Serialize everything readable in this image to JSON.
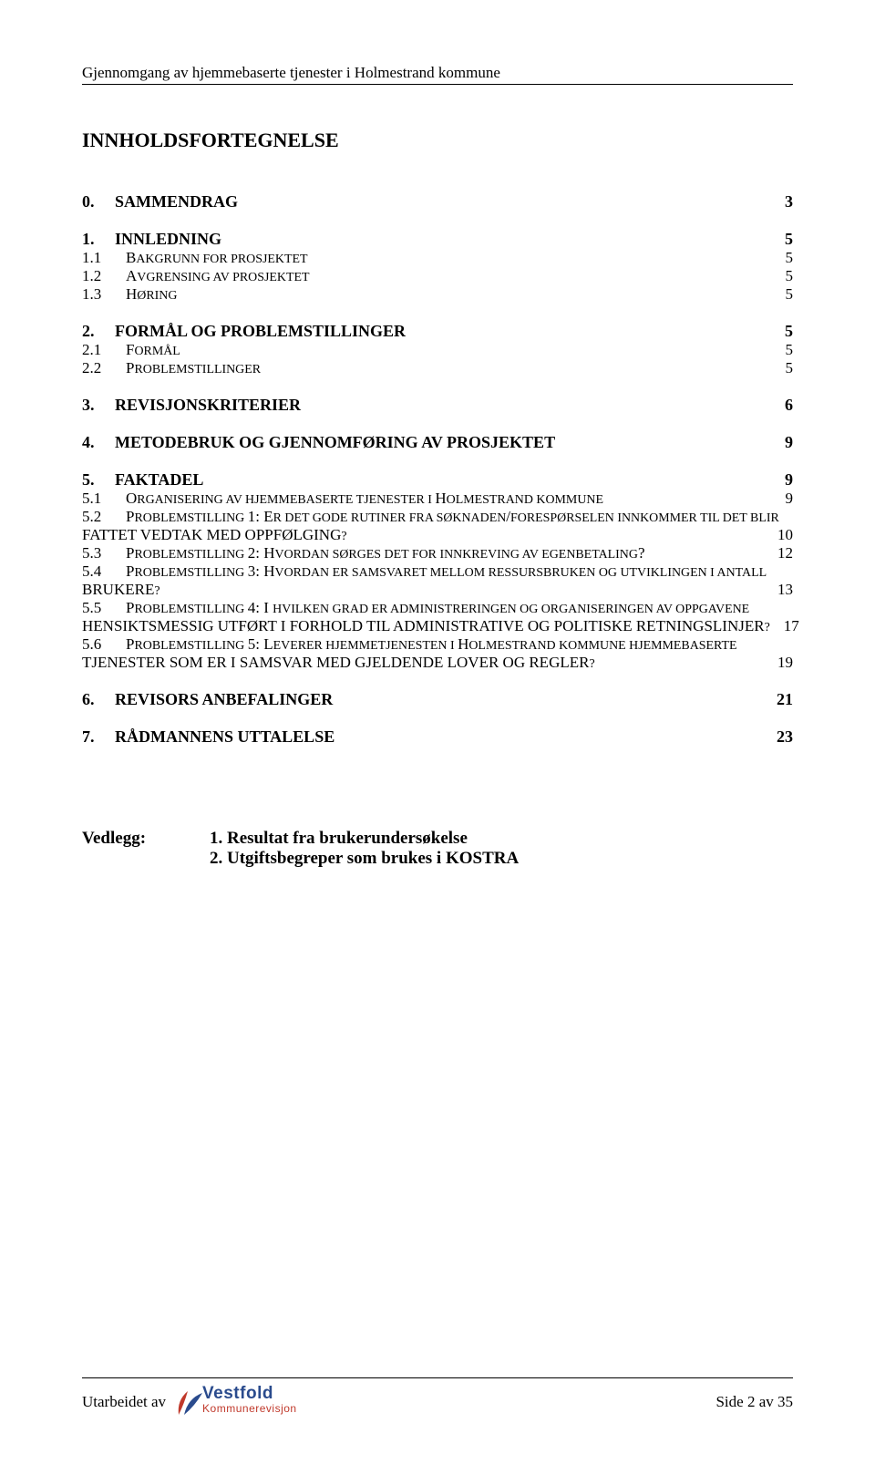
{
  "header": {
    "text": "Gjennomgang av hjemmebaserte tjenester i Holmestrand kommune"
  },
  "toc": {
    "title": "INNHOLDSFORTEGNELSE",
    "entries": [
      {
        "level": 1,
        "num": "0.",
        "label": "SAMMENDRAG",
        "page": "3",
        "first": true
      },
      {
        "level": 1,
        "num": "1.",
        "label": "INNLEDNING",
        "page": "5"
      },
      {
        "level": 2,
        "num": "1.1",
        "label_parts": [
          "B",
          "AKGRUNN FOR PROSJEKTET"
        ],
        "page": "5"
      },
      {
        "level": 2,
        "num": "1.2",
        "label_parts": [
          "A",
          "VGRENSING AV PROSJEKTET"
        ],
        "page": "5"
      },
      {
        "level": 2,
        "num": "1.3",
        "label_parts": [
          "H",
          "ØRING"
        ],
        "page": "5"
      },
      {
        "level": 1,
        "num": "2.",
        "label": "FORMÅL OG PROBLEMSTILLINGER",
        "page": "5"
      },
      {
        "level": 2,
        "num": "2.1",
        "label_parts": [
          "F",
          "ORMÅL"
        ],
        "page": "5"
      },
      {
        "level": 2,
        "num": "2.2",
        "label_parts": [
          "P",
          "ROBLEMSTILLINGER"
        ],
        "page": "5"
      },
      {
        "level": 1,
        "num": "3.",
        "label": "REVISJONSKRITERIER",
        "page": "6"
      },
      {
        "level": 1,
        "num": "4.",
        "label": "METODEBRUK OG GJENNOMFØRING AV PROSJEKTET",
        "page": "9"
      },
      {
        "level": 1,
        "num": "5.",
        "label": "FAKTADEL",
        "page": "9"
      },
      {
        "level": 2,
        "num": "5.1",
        "label_parts": [
          "O",
          "RGANISERING AV HJEMMEBASERTE TJENESTER I ",
          "H",
          "OLMESTRAND KOMMUNE"
        ],
        "page": "9"
      },
      {
        "level": 2,
        "num": "5.2",
        "multi": true,
        "line1_parts": [
          "P",
          "ROBLEMSTILLING ",
          "1: E",
          "R DET GODE RUTINER FRA SØKNADEN",
          "/",
          "FORESPØRSELEN INNKOMMER TIL DET BLIR"
        ],
        "line2_parts": [
          "FATTET VEDTAK MED OPPFØLGING",
          "?"
        ],
        "page": "10"
      },
      {
        "level": 2,
        "num": "5.3",
        "label_parts": [
          "P",
          "ROBLEMSTILLING ",
          "2: H",
          "VORDAN SØRGES DET FOR INNKREVING AV EGENBETALING",
          "?"
        ],
        "page": "12"
      },
      {
        "level": 2,
        "num": "5.4",
        "multi": true,
        "line1_parts": [
          "P",
          "ROBLEMSTILLING ",
          "3: H",
          "VORDAN ER SAMSVARET MELLOM RESSURSBRUKEN OG UTVIKLINGEN I ANTALL"
        ],
        "line2_parts": [
          "BRUKERE",
          "?"
        ],
        "page": "13"
      },
      {
        "level": 2,
        "num": "5.5",
        "multi": true,
        "line1_parts": [
          "P",
          "ROBLEMSTILLING ",
          "4: I ",
          "HVILKEN GRAD ER ADMINISTRERINGEN OG ORGANISERINGEN AV OPPGAVENE"
        ],
        "line2_parts": [
          "HENSIKTSMESSIG UTFØRT I FORHOLD TIL ADMINISTRATIVE OG POLITISKE RETNINGSLINJER",
          "?"
        ],
        "page": "17"
      },
      {
        "level": 2,
        "num": "5.6",
        "multi": true,
        "line1_parts": [
          "P",
          "ROBLEMSTILLING ",
          "5: L",
          "EVERER HJEMMETJENESTEN I ",
          "H",
          "OLMESTRAND KOMMUNE HJEMMEBASERTE"
        ],
        "line2_parts": [
          "TJENESTER SOM ER I SAMSVAR MED GJELDENDE LOVER OG REGLER",
          "?"
        ],
        "page": "19"
      },
      {
        "level": 1,
        "num": "6.",
        "label": "REVISORS ANBEFALINGER",
        "page": "21"
      },
      {
        "level": 1,
        "num": "7.",
        "label": "RÅDMANNENS UTTALELSE",
        "page": "23"
      }
    ]
  },
  "attachments": {
    "label": "Vedlegg:",
    "items": [
      "1. Resultat fra brukerundersøkelse",
      "2. Utgiftsbegreper som brukes i KOSTRA"
    ]
  },
  "footer": {
    "left_text": "Utarbeidet av",
    "logo": {
      "line1": "Vestfold",
      "line2": "Kommunerevisjon",
      "swoosh_colors": [
        "#c0392b",
        "#2a4b8d"
      ]
    },
    "right_text": "Side 2 av 35"
  }
}
